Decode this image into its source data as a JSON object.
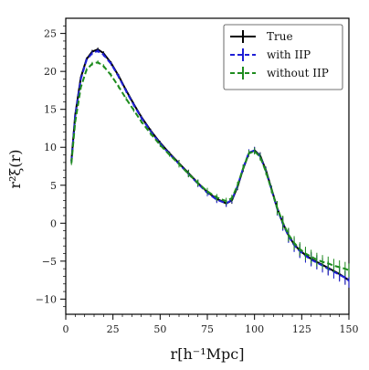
{
  "chart_data": {
    "type": "line",
    "title": "",
    "xlabel": "r[h⁻¹Mpc]",
    "ylabel": "r²ξ(r)",
    "xlim": [
      0,
      150
    ],
    "ylim": [
      -12,
      27
    ],
    "xticks": [
      0,
      25,
      50,
      75,
      100,
      125,
      150
    ],
    "yticks": [
      -10,
      -5,
      0,
      5,
      10,
      15,
      20,
      25
    ],
    "grid": false,
    "legend_position": "top-right",
    "x": [
      3,
      5,
      8,
      11,
      14,
      17,
      20,
      24,
      28,
      32,
      36,
      40,
      45,
      50,
      55,
      60,
      65,
      70,
      75,
      80,
      85,
      88,
      91,
      94,
      97,
      100,
      103,
      106,
      109,
      112,
      115,
      118,
      121,
      124,
      127,
      130,
      133,
      136,
      139,
      142,
      145,
      148,
      150
    ],
    "series": [
      {
        "name": "True",
        "color": "#000000",
        "style": "solid",
        "values": [
          8.2,
          14.2,
          19.2,
          21.6,
          22.6,
          22.9,
          22.4,
          21.1,
          19.4,
          17.5,
          15.7,
          14.0,
          12.2,
          10.6,
          9.2,
          7.9,
          6.6,
          5.3,
          4.1,
          3.2,
          2.6,
          3.0,
          4.8,
          7.2,
          9.2,
          9.6,
          8.9,
          7.0,
          4.5,
          2.0,
          0.0,
          -1.6,
          -2.8,
          -3.6,
          -4.2,
          -4.7,
          -5.1,
          -5.5,
          -5.9,
          -6.3,
          -6.7,
          -7.2,
          -7.5
        ]
      },
      {
        "name": "with IIP",
        "color": "#1f1fd6",
        "style": "dashed",
        "values": [
          8.1,
          14.1,
          19.0,
          21.5,
          22.4,
          22.7,
          22.2,
          21.0,
          19.3,
          17.4,
          15.6,
          13.9,
          12.1,
          10.5,
          9.1,
          7.8,
          6.5,
          5.2,
          4.0,
          3.1,
          2.6,
          3.1,
          4.9,
          7.3,
          9.3,
          9.6,
          8.8,
          6.9,
          4.4,
          1.9,
          -0.1,
          -1.7,
          -2.9,
          -3.7,
          -4.3,
          -4.8,
          -5.2,
          -5.6,
          -6.0,
          -6.4,
          -6.8,
          -7.2,
          -7.6
        ]
      },
      {
        "name": "without IIP",
        "color": "#1e8c1e",
        "style": "dashed",
        "values": [
          7.9,
          13.3,
          17.9,
          20.2,
          21.0,
          21.2,
          20.7,
          19.5,
          18.0,
          16.4,
          14.9,
          13.4,
          11.8,
          10.3,
          9.0,
          7.8,
          6.5,
          5.3,
          4.2,
          3.4,
          2.9,
          3.3,
          5.0,
          7.3,
          9.2,
          9.5,
          8.7,
          6.8,
          4.4,
          2.0,
          0.1,
          -1.5,
          -2.6,
          -3.4,
          -4.0,
          -4.4,
          -4.8,
          -5.1,
          -5.3,
          -5.6,
          -5.8,
          -6.0,
          -6.2
        ]
      }
    ]
  }
}
